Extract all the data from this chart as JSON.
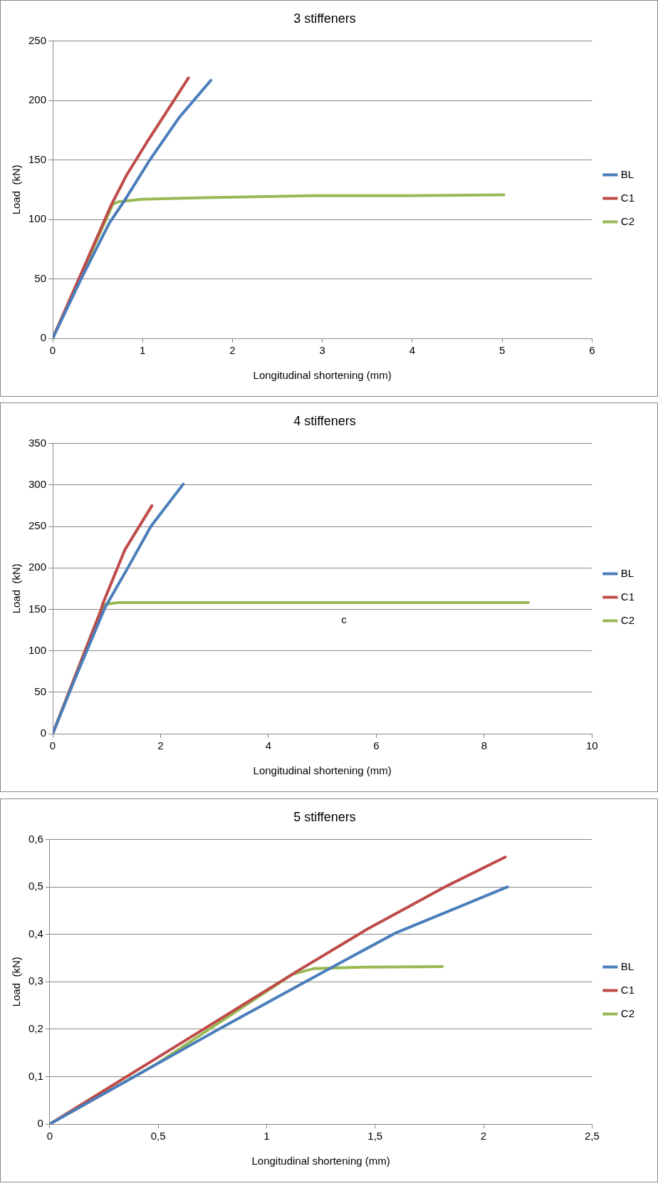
{
  "chart_data": [
    {
      "type": "line",
      "title": "3 stiffeners",
      "xlabel": "Longitudinal shortening (mm)",
      "ylabel": "Load  (kN)",
      "xlim": [
        0,
        6
      ],
      "xticks": [
        0,
        1,
        2,
        3,
        4,
        5,
        6
      ],
      "ylim": [
        0,
        250
      ],
      "yticks": [
        0,
        50,
        100,
        150,
        200,
        250
      ],
      "grid": "y",
      "legend": "right",
      "marker": "none",
      "line_style": "solid",
      "series": [
        {
          "name": "BL",
          "color": "#4a7ebb",
          "x": [
            0,
            0.31,
            0.63,
            0.8,
            1.08,
            1.41,
            1.76
          ],
          "values": [
            0,
            49,
            97,
            116,
            150,
            186,
            217
          ]
        },
        {
          "name": "C1",
          "color": "#be4b48",
          "x": [
            0,
            0.65,
            0.82,
            1.04,
            1.28,
            1.51
          ],
          "values": [
            0,
            112,
            137,
            164,
            192,
            219
          ]
        },
        {
          "name": "C2",
          "color": "#98b954",
          "x": [
            0,
            0.67,
            0.74,
            1.0,
            1.81,
            2.87,
            3.93,
            5.02
          ],
          "values": [
            0,
            113,
            115,
            117,
            118.5,
            120,
            120,
            120.7
          ]
        }
      ]
    },
    {
      "type": "line",
      "title": "4 stiffeners",
      "xlabel": "Longitudinal shortening (mm)",
      "ylabel": "Load  (kN)",
      "xlim": [
        0,
        10
      ],
      "xticks": [
        0,
        2,
        4,
        6,
        8,
        10
      ],
      "ylim": [
        0,
        350
      ],
      "yticks": [
        0,
        50,
        100,
        150,
        200,
        250,
        300,
        350
      ],
      "grid": "y",
      "legend": "right",
      "marker": "none",
      "line_style": "solid",
      "annotations": [
        "c"
      ],
      "series": [
        {
          "name": "BL",
          "color": "#4a7ebb",
          "x": [
            0,
            0.45,
            0.97,
            1.41,
            1.82,
            2.42
          ],
          "values": [
            0,
            72,
            152,
            202,
            250,
            301
          ]
        },
        {
          "name": "C1",
          "color": "#be4b48",
          "x": [
            0,
            0.9,
            0.93,
            1.34,
            1.84
          ],
          "values": [
            0,
            150,
            157,
            222,
            275
          ]
        },
        {
          "name": "C2",
          "color": "#98b954",
          "x": [
            0,
            0.9,
            0.97,
            1.2,
            8.82
          ],
          "values": [
            0,
            150,
            156,
            158,
            158
          ]
        }
      ]
    },
    {
      "type": "line",
      "title": "5 stiffeners",
      "xlabel": "Longitudinal shortening (mm)",
      "ylabel": "Load  (kN)",
      "xlim": [
        0,
        2.5
      ],
      "xticks": [
        0,
        {
          "value": 0.5,
          "label": "0,5"
        },
        1,
        {
          "value": 1.5,
          "label": "1,5"
        },
        2,
        {
          "value": 2.5,
          "label": "2,5"
        }
      ],
      "ylim": [
        0,
        0.6
      ],
      "yticks": [
        0,
        {
          "value": 0.1,
          "label": "0,1"
        },
        {
          "value": 0.2,
          "label": "0,2"
        },
        {
          "value": 0.3,
          "label": "0,3"
        },
        {
          "value": 0.4,
          "label": "0,4"
        },
        {
          "value": 0.5,
          "label": "0,5"
        },
        {
          "value": 0.6,
          "label": "0,6"
        }
      ],
      "grid": "y",
      "legend": "right",
      "marker": "none",
      "line_style": "solid",
      "series": [
        {
          "name": "BL",
          "color": "#4a7ebb",
          "x": [
            0,
            0.78,
            1.17,
            1.59,
            2.11
          ],
          "values": [
            0,
            0.2,
            0.298,
            0.402,
            0.5
          ]
        },
        {
          "name": "C1",
          "color": "#be4b48",
          "x": [
            0,
            0.78,
            1.14,
            1.46,
            1.83,
            2.1
          ],
          "values": [
            0,
            0.22,
            0.322,
            0.41,
            0.502,
            0.563
          ]
        },
        {
          "name": "C2",
          "color": "#98b954",
          "x": [
            0,
            0.49,
            1.12,
            1.22,
            1.46,
            1.81
          ],
          "values": [
            0,
            0.126,
            0.316,
            0.328,
            0.331,
            0.332
          ]
        }
      ]
    }
  ]
}
